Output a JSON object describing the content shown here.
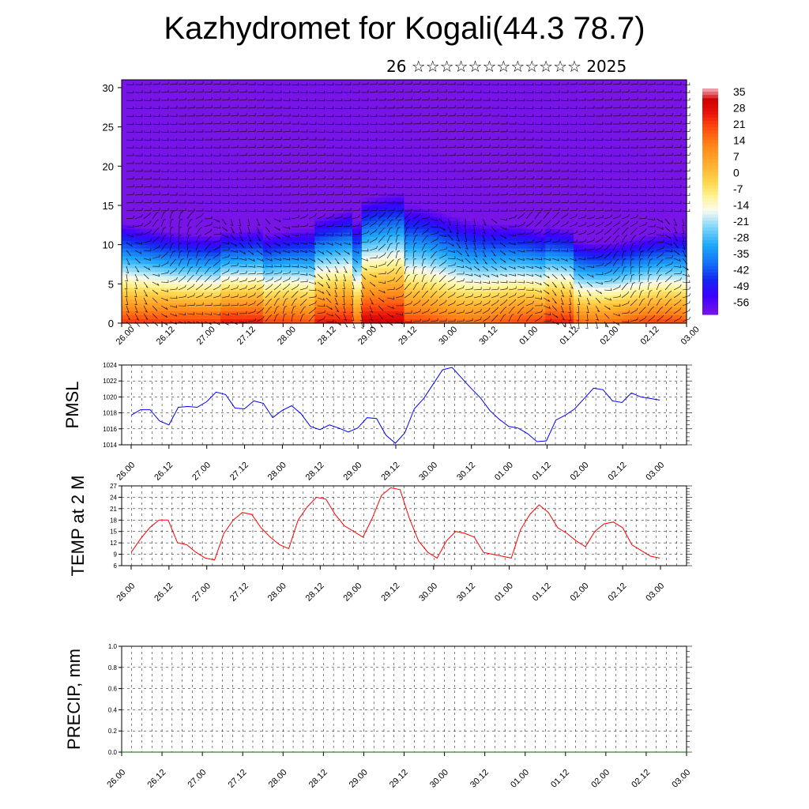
{
  "header": {
    "title": "Kazhydromet for Kogali(44.3 78.7)",
    "subtitle": "26 ☆☆☆☆☆☆☆☆☆☆☆☆ 2025"
  },
  "chart_data": [
    {
      "type": "heatmap",
      "name": "height-time temperature and wind cross-section",
      "xlabel": "",
      "ylabel": "",
      "x_tick_labels": [
        "26.00",
        "26.12",
        "27.00",
        "27.12",
        "28.00",
        "28.12",
        "29.00",
        "29.12",
        "30.00",
        "30.12",
        "01.00",
        "01.12",
        "02.00",
        "02.12",
        "03.00"
      ],
      "y_ticks": [
        0,
        5,
        10,
        15,
        20,
        25,
        30
      ],
      "ylim": [
        0,
        31
      ],
      "colorbar_labels": [
        "35",
        "28",
        "21",
        "14",
        "7",
        "0",
        "-7",
        "-14",
        "-21",
        "-28",
        "-35",
        "-42",
        "-49",
        "-56"
      ],
      "colorbar_range": [
        -60,
        38
      ],
      "surface_temperature_bands": [
        {
          "from": "26.00",
          "to": "27.06",
          "temp": 24
        },
        {
          "from": "27.06",
          "to": "27.18",
          "temp": 28
        },
        {
          "from": "28.10",
          "to": "28.20",
          "temp": 28
        },
        {
          "from": "29.00",
          "to": "29.12",
          "temp": 33
        },
        {
          "from": "01.06",
          "to": "01.14",
          "temp": 27
        }
      ],
      "overlay": "wind barbs"
    },
    {
      "type": "line",
      "ylabel": "PMSL",
      "ylim": [
        1014,
        1024
      ],
      "y_ticks": [
        1014,
        1016,
        1018,
        1020,
        1022,
        1024
      ],
      "x_tick_labels": [
        "26.00",
        "26.12",
        "27.00",
        "27.12",
        "28.00",
        "28.12",
        "29.00",
        "29.12",
        "30.00",
        "30.12",
        "01.00",
        "01.12",
        "02.00",
        "02.12",
        "03.00"
      ],
      "series": [
        {
          "color": "#0000ff",
          "values": [
            1017.7,
            1018.4,
            1018.4,
            1017.0,
            1016.5,
            1018.7,
            1018.8,
            1018.7,
            1019.4,
            1020.6,
            1020.3,
            1018.6,
            1018.5,
            1019.5,
            1019.2,
            1017.4,
            1018.3,
            1018.9,
            1017.9,
            1016.3,
            1015.9,
            1016.5,
            1016.1,
            1015.6,
            1016.1,
            1017.4,
            1017.3,
            1015.2,
            1014.2,
            1015.5,
            1018.5,
            1019.8,
            1021.6,
            1023.4,
            1023.7,
            1022.4,
            1021.1,
            1019.9,
            1018.3,
            1017.2,
            1016.3,
            1016.1,
            1015.4,
            1014.4,
            1014.5,
            1017.1,
            1017.7,
            1018.5,
            1019.8,
            1021.1,
            1020.9,
            1019.5,
            1019.3,
            1020.5,
            1020.0,
            1019.8,
            1019.6
          ]
        }
      ]
    },
    {
      "type": "line",
      "ylabel": "TEMP at 2 M",
      "ylim": [
        6,
        27
      ],
      "y_ticks": [
        6,
        9,
        12,
        15,
        18,
        21,
        24,
        27
      ],
      "x_tick_labels": [
        "26.00",
        "26.12",
        "27.00",
        "27.12",
        "28.00",
        "28.12",
        "29.00",
        "29.12",
        "30.00",
        "30.12",
        "01.00",
        "01.12",
        "02.00",
        "02.12",
        "03.00"
      ],
      "series": [
        {
          "color": "#ff0000",
          "values": [
            9.5,
            13.0,
            16.0,
            18.0,
            18.0,
            12.0,
            11.5,
            9.5,
            8.0,
            7.5,
            14.5,
            18.0,
            20.0,
            19.5,
            16.0,
            13.5,
            11.5,
            10.5,
            18.0,
            21.5,
            24.0,
            23.5,
            19.5,
            16.5,
            15.0,
            13.5,
            18.5,
            24.5,
            26.5,
            26.0,
            18.5,
            12.5,
            9.5,
            8.0,
            12.5,
            15.0,
            14.5,
            13.5,
            9.5,
            9.0,
            8.5,
            8.0,
            15.5,
            19.5,
            22.0,
            20.0,
            16.0,
            14.5,
            12.5,
            11.0,
            15.0,
            17.0,
            17.5,
            16.0,
            11.5,
            10.0,
            8.5,
            8.0
          ]
        }
      ]
    },
    {
      "type": "line",
      "ylabel": "PRECIP, mm",
      "ylim": [
        0,
        1.0
      ],
      "y_tick_labels": [
        "0.0",
        "0.2",
        "0.4",
        "0.6",
        "0.8",
        "1.0"
      ],
      "x_tick_labels": [
        "26.00",
        "26.12",
        "27.00",
        "27.12",
        "28.00",
        "28.12",
        "29.00",
        "29.12",
        "30.00",
        "30.12",
        "01.00",
        "01.12",
        "02.00",
        "02.12",
        "03.00"
      ],
      "series": [
        {
          "color": "#006400",
          "values": [
            0,
            0,
            0,
            0,
            0,
            0,
            0,
            0,
            0,
            0,
            0,
            0,
            0,
            0,
            0
          ]
        }
      ]
    }
  ]
}
